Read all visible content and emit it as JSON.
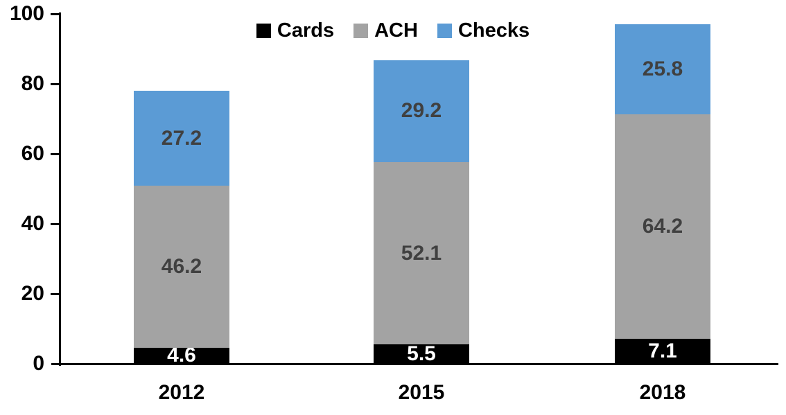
{
  "chart_data": {
    "type": "bar",
    "stacked": true,
    "title": "",
    "xlabel": "",
    "ylabel": "",
    "categories": [
      "2012",
      "2015",
      "2018"
    ],
    "series": [
      {
        "name": "Cards",
        "color": "#000000",
        "label_color": "#ffffff",
        "values": [
          4.6,
          5.5,
          7.1
        ]
      },
      {
        "name": "ACH",
        "color": "#a3a3a3",
        "label_color": "#404040",
        "values": [
          46.2,
          52.1,
          64.2
        ]
      },
      {
        "name": "Checks",
        "color": "#5b9bd5",
        "label_color": "#404040",
        "values": [
          27.2,
          29.2,
          25.8
        ]
      }
    ],
    "totals": [
      78.0,
      86.8,
      97.1
    ],
    "y_ticks": [
      0,
      20,
      40,
      60,
      80,
      100
    ],
    "ylim": [
      0,
      100
    ],
    "grid": false,
    "legend_position": "top-center",
    "axis_color": "#000000",
    "tick_label_color": "#000000"
  }
}
